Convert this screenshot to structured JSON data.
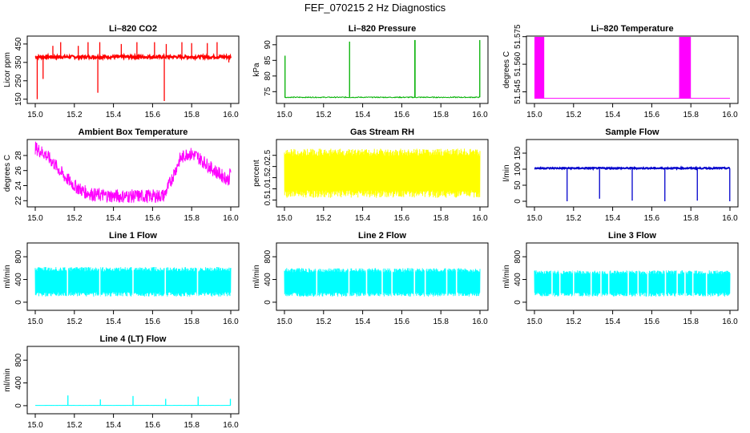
{
  "title": "FEF_070215  2 Hz Diagnostics",
  "chart_data": [
    {
      "id": "co2",
      "type": "line",
      "title": "Li–820 CO2",
      "ylabel": "Licor ppm",
      "color": "#ff0000",
      "xlim": [
        15.0,
        16.0
      ],
      "ylim": [
        140,
        480
      ],
      "xticks": [
        "15.0",
        "15.2",
        "15.4",
        "15.6",
        "15.8",
        "16.0"
      ],
      "yticks": [
        "150",
        "250",
        "350",
        "450"
      ],
      "baseline": 380,
      "noise": 8,
      "spikes": [
        [
          15.01,
          150
        ],
        [
          15.04,
          260
        ],
        [
          15.09,
          440
        ],
        [
          15.13,
          460
        ],
        [
          15.22,
          440
        ],
        [
          15.27,
          460
        ],
        [
          15.32,
          185
        ],
        [
          15.33,
          460
        ],
        [
          15.44,
          450
        ],
        [
          15.52,
          460
        ],
        [
          15.61,
          460
        ],
        [
          15.66,
          140
        ],
        [
          15.67,
          450
        ],
        [
          15.75,
          460
        ],
        [
          15.8,
          455
        ],
        [
          15.88,
          455
        ],
        [
          15.93,
          460
        ],
        [
          15.99,
          350
        ]
      ]
    },
    {
      "id": "pressure",
      "type": "line",
      "title": "Li–820 Pressure",
      "ylabel": "kPa",
      "color": "#00b000",
      "xlim": [
        15.0,
        16.0
      ],
      "ylim": [
        72,
        92
      ],
      "xticks": [
        "15.0",
        "15.2",
        "15.4",
        "15.6",
        "15.8",
        "16.0"
      ],
      "yticks": [
        "75",
        "80",
        "85",
        "90"
      ],
      "baseline": 73.2,
      "noise": 0.15,
      "spikes": [
        [
          15.003,
          86.5
        ],
        [
          15.333,
          91
        ],
        [
          15.667,
          91.5
        ],
        [
          15.668,
          91.5
        ],
        [
          15.999,
          91.5
        ]
      ]
    },
    {
      "id": "temp820",
      "type": "line",
      "title": "Li–820 Temperature",
      "ylabel": "degrees C",
      "color": "#ff00ff",
      "xlim": [
        15.0,
        16.0
      ],
      "ylim": [
        51.54,
        51.574
      ],
      "xticks": [
        "15.0",
        "15.2",
        "15.4",
        "15.6",
        "15.8",
        "16.0"
      ],
      "yticks": [
        "51.545",
        "51.560",
        "51.575"
      ],
      "baseline": 51.5415,
      "blocks": [
        [
          15.0,
          15.05
        ],
        [
          15.74,
          15.8
        ]
      ]
    },
    {
      "id": "ambient",
      "type": "line",
      "title": "Ambient Box Temperature",
      "ylabel": "degrees C",
      "color": "#ff00ff",
      "xlim": [
        15.0,
        16.0
      ],
      "ylim": [
        21.5,
        29.8
      ],
      "xticks": [
        "15.0",
        "15.2",
        "15.4",
        "15.6",
        "15.8",
        "16.0"
      ],
      "yticks": [
        "22",
        "24",
        "26",
        "28"
      ],
      "curve": [
        [
          15.0,
          29
        ],
        [
          15.05,
          28.2
        ],
        [
          15.1,
          26.8
        ],
        [
          15.15,
          25.2
        ],
        [
          15.2,
          24
        ],
        [
          15.25,
          23.2
        ],
        [
          15.3,
          22.8
        ],
        [
          15.4,
          22.6
        ],
        [
          15.5,
          22.6
        ],
        [
          15.6,
          22.6
        ],
        [
          15.66,
          22.7
        ],
        [
          15.7,
          25
        ],
        [
          15.74,
          27.5
        ],
        [
          15.78,
          28.3
        ],
        [
          15.82,
          28
        ],
        [
          15.86,
          27.2
        ],
        [
          15.9,
          26.3
        ],
        [
          15.95,
          25.4
        ],
        [
          15.99,
          24.8
        ],
        [
          16.0,
          26
        ]
      ],
      "band": 0.9
    },
    {
      "id": "rh",
      "type": "band",
      "title": "Gas Stream RH",
      "ylabel": "percent",
      "color": "#ffff00",
      "xlim": [
        15.0,
        16.0
      ],
      "ylim": [
        0.3,
        3.1
      ],
      "xticks": [
        "15.0",
        "15.2",
        "15.4",
        "15.6",
        "15.8",
        "16.0"
      ],
      "yticks": [
        "0.5",
        "1.0",
        "1.5",
        "2.0",
        "2.5"
      ],
      "low": 0.6,
      "high": 2.8
    },
    {
      "id": "sample",
      "type": "line",
      "title": "Sample Flow",
      "ylabel": "l/min",
      "color": "#0000cc",
      "xlim": [
        15.0,
        16.0
      ],
      "ylim": [
        -10,
        185
      ],
      "xticks": [
        "15.0",
        "15.2",
        "15.4",
        "15.6",
        "15.8",
        "16.0"
      ],
      "yticks": [
        "0",
        "50",
        "100",
        "150"
      ],
      "baseline": 103,
      "noise": 2,
      "spikes": [
        [
          15.167,
          0
        ],
        [
          15.333,
          8
        ],
        [
          15.5,
          2
        ],
        [
          15.667,
          0
        ],
        [
          15.833,
          2
        ],
        [
          15.999,
          0
        ]
      ]
    },
    {
      "id": "line1",
      "type": "band",
      "title": "Line 1 Flow",
      "ylabel": "ml/min",
      "color": "#00ffff",
      "xlim": [
        15.0,
        16.0
      ],
      "ylim": [
        -100,
        1000
      ],
      "xticks": [
        "15.0",
        "15.2",
        "15.4",
        "15.6",
        "15.8",
        "16.0"
      ],
      "yticks": [
        "0",
        "400",
        "800"
      ],
      "low": 100,
      "high": 620,
      "gaps": [
        15.165,
        15.33,
        15.5,
        15.665,
        15.83
      ]
    },
    {
      "id": "line2",
      "type": "band",
      "title": "Line 2 Flow",
      "ylabel": "ml/min",
      "color": "#00ffff",
      "xlim": [
        15.0,
        16.0
      ],
      "ylim": [
        -100,
        1000
      ],
      "xticks": [
        "15.0",
        "15.2",
        "15.4",
        "15.6",
        "15.8",
        "16.0"
      ],
      "yticks": [
        "0",
        "400",
        "800"
      ],
      "low": 100,
      "high": 600,
      "gaps": [
        15.165,
        15.33,
        15.42,
        15.5,
        15.55,
        15.665,
        15.72,
        15.83,
        15.88
      ]
    },
    {
      "id": "line3",
      "type": "band",
      "title": "Line 3 Flow",
      "ylabel": "ml/min",
      "color": "#00ffff",
      "xlim": [
        15.0,
        16.0
      ],
      "ylim": [
        -100,
        1000
      ],
      "xticks": [
        "15.0",
        "15.2",
        "15.4",
        "15.6",
        "15.8",
        "16.0"
      ],
      "yticks": [
        "0",
        "400",
        "800"
      ],
      "low": 100,
      "high": 560,
      "gaps": [
        15.09,
        15.13,
        15.2,
        15.29,
        15.34,
        15.38,
        15.48,
        15.53,
        15.58,
        15.67,
        15.73,
        15.77,
        15.81,
        15.88
      ]
    },
    {
      "id": "line4",
      "type": "line",
      "title": "Line 4 (LT) Flow",
      "ylabel": "ml/min",
      "color": "#00ffff",
      "xlim": [
        15.0,
        16.0
      ],
      "ylim": [
        -100,
        1000
      ],
      "xticks": [
        "15.0",
        "15.2",
        "15.4",
        "15.6",
        "15.8",
        "16.0"
      ],
      "yticks": [
        "0",
        "400",
        "800"
      ],
      "baseline": 5,
      "noise": 1,
      "spikes": [
        [
          15.167,
          180
        ],
        [
          15.333,
          110
        ],
        [
          15.5,
          170
        ],
        [
          15.667,
          120
        ],
        [
          15.833,
          160
        ],
        [
          15.998,
          120
        ]
      ]
    }
  ]
}
